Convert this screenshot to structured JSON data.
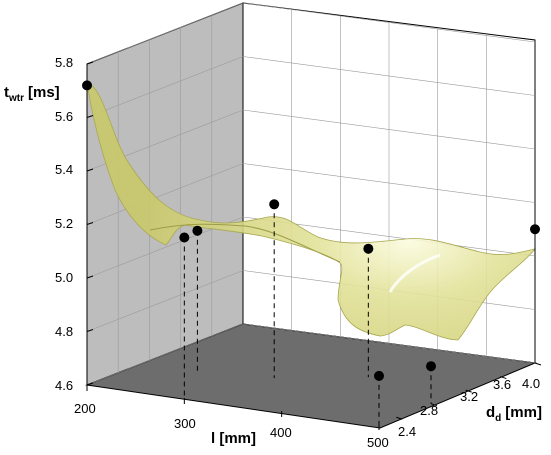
{
  "chart_data": {
    "type": "surface3d",
    "title": "",
    "zlabel": {
      "main": "t",
      "sub": "wtr",
      "unit": "[ms]"
    },
    "xlabel": "l [mm]",
    "ylabel": {
      "main": "d",
      "sub": "d",
      "unit": "[mm]"
    },
    "x_ticks": [
      "200",
      "300",
      "400",
      "500"
    ],
    "y_ticks": [
      "2.4",
      "2.8",
      "3.2",
      "3.6",
      "4.0"
    ],
    "z_ticks": [
      "4.6",
      "4.8",
      "5.0",
      "5.2",
      "5.4",
      "5.6",
      "5.8"
    ],
    "xlim": [
      200,
      500
    ],
    "ylim": [
      2.2,
      4.0
    ],
    "zlim": [
      4.6,
      5.8
    ],
    "grid": true,
    "surface_color": "#e3e399",
    "points": [
      {
        "x": 200,
        "y": 2.2,
        "z": 5.72
      },
      {
        "x": 260,
        "y": 2.8,
        "z": 5.13
      },
      {
        "x": 300,
        "y": 2.2,
        "z": 5.2
      },
      {
        "x": 330,
        "y": 2.9,
        "z": 5.25
      },
      {
        "x": 400,
        "y": 3.2,
        "z": 5.08
      },
      {
        "x": 500,
        "y": 2.2,
        "z": 4.78
      },
      {
        "x": 500,
        "y": 2.8,
        "z": 4.74
      },
      {
        "x": 500,
        "y": 4.0,
        "z": 5.1
      }
    ]
  }
}
